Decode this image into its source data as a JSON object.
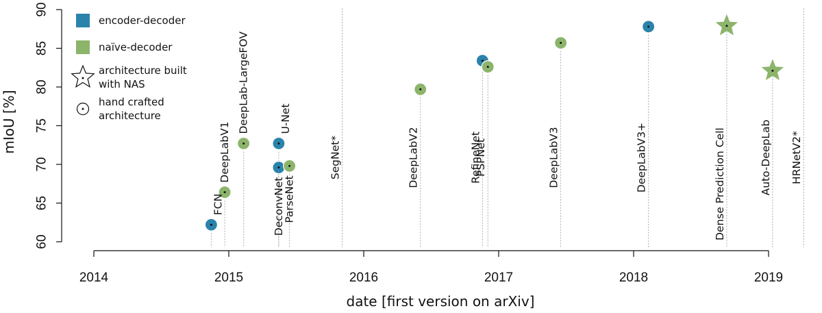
{
  "chart_data": {
    "type": "scatter",
    "xlabel": "date [first version on arXiv]",
    "ylabel": "mIoU [%]",
    "xlim": [
      2014.0,
      2019.3
    ],
    "ylim": [
      60,
      90
    ],
    "xticks": [
      "2014",
      "2015",
      "2016",
      "2017",
      "2018",
      "2019"
    ],
    "yticks": [
      "60",
      "65",
      "70",
      "75",
      "80",
      "85",
      "90"
    ],
    "grid": false,
    "legend_position": "top-left",
    "colors": {
      "encoder_decoder": "#2b83ab",
      "naive_decoder": "#8cb46b",
      "text": "#111111",
      "dropline": "#aaaaaa"
    },
    "legend": [
      {
        "label": "encoder-decoder",
        "symbol": "square",
        "color_key": "encoder_decoder"
      },
      {
        "label": "naïve-decoder",
        "symbol": "square",
        "color_key": "naive_decoder"
      },
      {
        "label": [
          "architecture built",
          "with NAS"
        ],
        "symbol": "star-outline"
      },
      {
        "label": [
          "hand crafted",
          "architecture"
        ],
        "symbol": "circle-dot-outline"
      }
    ],
    "points": [
      {
        "name": "FCN",
        "x": 2014.87,
        "y": 62.2,
        "category": "encoder-decoder",
        "marker": "circle",
        "label_pos": "right"
      },
      {
        "name": "DeepLabV1",
        "x": 2014.97,
        "y": 66.4,
        "category": "naive-decoder",
        "marker": "circle",
        "label_pos": "above"
      },
      {
        "name": "DeepLab-LargeFOV",
        "x": 2015.11,
        "y": 72.7,
        "category": "naive-decoder",
        "marker": "circle",
        "label_pos": "above"
      },
      {
        "name": "DeconvNet",
        "x": 2015.37,
        "y": 69.6,
        "category": "encoder-decoder",
        "marker": "circle",
        "label_pos": "below"
      },
      {
        "name": "U-Net",
        "x": 2015.37,
        "y": 72.7,
        "category": "encoder-decoder",
        "marker": "circle",
        "label_pos": "right"
      },
      {
        "name": "ParseNet",
        "x": 2015.45,
        "y": 69.8,
        "category": "naive-decoder",
        "marker": "circle",
        "label_pos": "below"
      },
      {
        "name": "SegNet*",
        "x": 2015.84,
        "y": null,
        "category": "encoder-decoder",
        "marker": "none",
        "label_pos": "mid"
      },
      {
        "name": "DeepLabV2",
        "x": 2016.42,
        "y": 79.7,
        "category": "naive-decoder",
        "marker": "circle",
        "label_pos": "mid"
      },
      {
        "name": "RefineNet",
        "x": 2016.88,
        "y": 83.4,
        "category": "encoder-decoder",
        "marker": "circle",
        "label_pos": "mid"
      },
      {
        "name": "PSPNet",
        "x": 2016.92,
        "y": 82.6,
        "category": "naive-decoder",
        "marker": "circle",
        "label_pos": "mid"
      },
      {
        "name": "DeepLabV3",
        "x": 2017.46,
        "y": 85.7,
        "category": "naive-decoder",
        "marker": "circle",
        "label_pos": "mid"
      },
      {
        "name": "DeepLabV3+",
        "x": 2018.11,
        "y": 87.8,
        "category": "encoder-decoder",
        "marker": "circle",
        "label_pos": "mid"
      },
      {
        "name": "Dense Prediction Cell",
        "x": 2018.69,
        "y": 87.9,
        "category": "naive-decoder",
        "marker": "star",
        "label_pos": "low"
      },
      {
        "name": "Auto-DeepLab",
        "x": 2019.03,
        "y": 82.1,
        "category": "naive-decoder",
        "marker": "star",
        "label_pos": "mid"
      },
      {
        "name": "HRNetV2*",
        "x": 2019.26,
        "y": null,
        "category": "naive-decoder",
        "marker": "none",
        "label_pos": "mid"
      }
    ]
  }
}
